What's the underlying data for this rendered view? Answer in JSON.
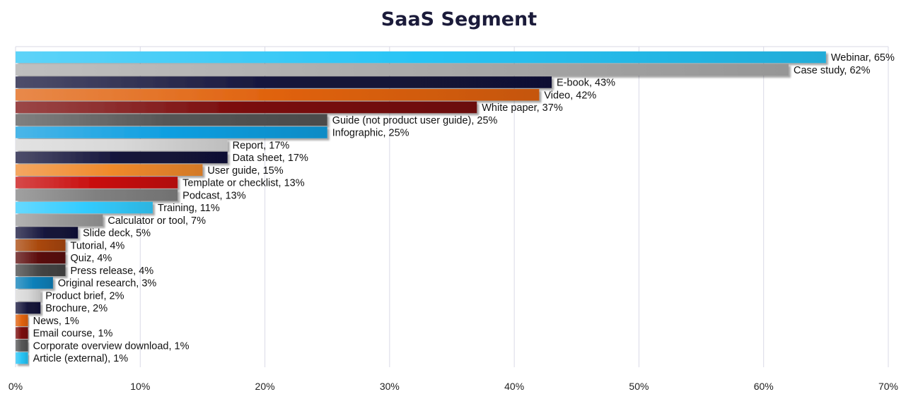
{
  "chart_data": {
    "type": "bar",
    "orientation": "horizontal",
    "title": "SaaS Segment",
    "xlabel": "",
    "ylabel": "",
    "xlim": [
      0,
      70
    ],
    "xticks": [
      "0%",
      "10%",
      "20%",
      "30%",
      "40%",
      "50%",
      "60%",
      "70%"
    ],
    "grid": "vertical",
    "label_format": "{category}, {value}%",
    "categories": [
      "Webinar",
      "Case study",
      "E-book",
      "Video",
      "White paper",
      "Guide (not product user guide)",
      "Infographic",
      "Report",
      "Data sheet",
      "User guide",
      "Template or checklist",
      "Podcast",
      "Training",
      "Calculator or tool",
      "Slide deck",
      "Tutorial",
      "Quiz",
      "Press release",
      "Original research",
      "Product brief",
      "Brochure",
      "News",
      "Email course",
      "Corporate overview download",
      "Article (external)"
    ],
    "values": [
      65,
      62,
      43,
      42,
      37,
      25,
      25,
      17,
      17,
      15,
      13,
      13,
      11,
      7,
      5,
      4,
      4,
      4,
      3,
      2,
      2,
      1,
      1,
      1,
      1
    ],
    "colors": {
      "cyan": "#27c4f5",
      "silver": "#aaaaaa",
      "navy": "#13133a",
      "orange": "#e0620d",
      "darkred": "#7a0a0a",
      "darkgray": "#555555",
      "blue": "#0d9ee0",
      "white": "#d8d8d8",
      "lightorange": "#f08a2c",
      "red": "#c80c0c",
      "gray": "#808080",
      "lightcyan": "#33ccff",
      "midgray": "#999999",
      "burnt": "#a84608",
      "maroon": "#5a0808",
      "charcoal": "#444444",
      "teal": "#0a7fb8",
      "grid": "#d9d9e6"
    },
    "bar_colors": [
      "cyan",
      "silver",
      "navy",
      "orange",
      "darkred",
      "darkgray",
      "blue",
      "white",
      "navy",
      "lightorange",
      "red",
      "gray",
      "lightcyan",
      "midgray",
      "navy",
      "burnt",
      "maroon",
      "charcoal",
      "teal",
      "white",
      "navy",
      "orange",
      "darkred",
      "darkgray",
      "cyan"
    ]
  }
}
